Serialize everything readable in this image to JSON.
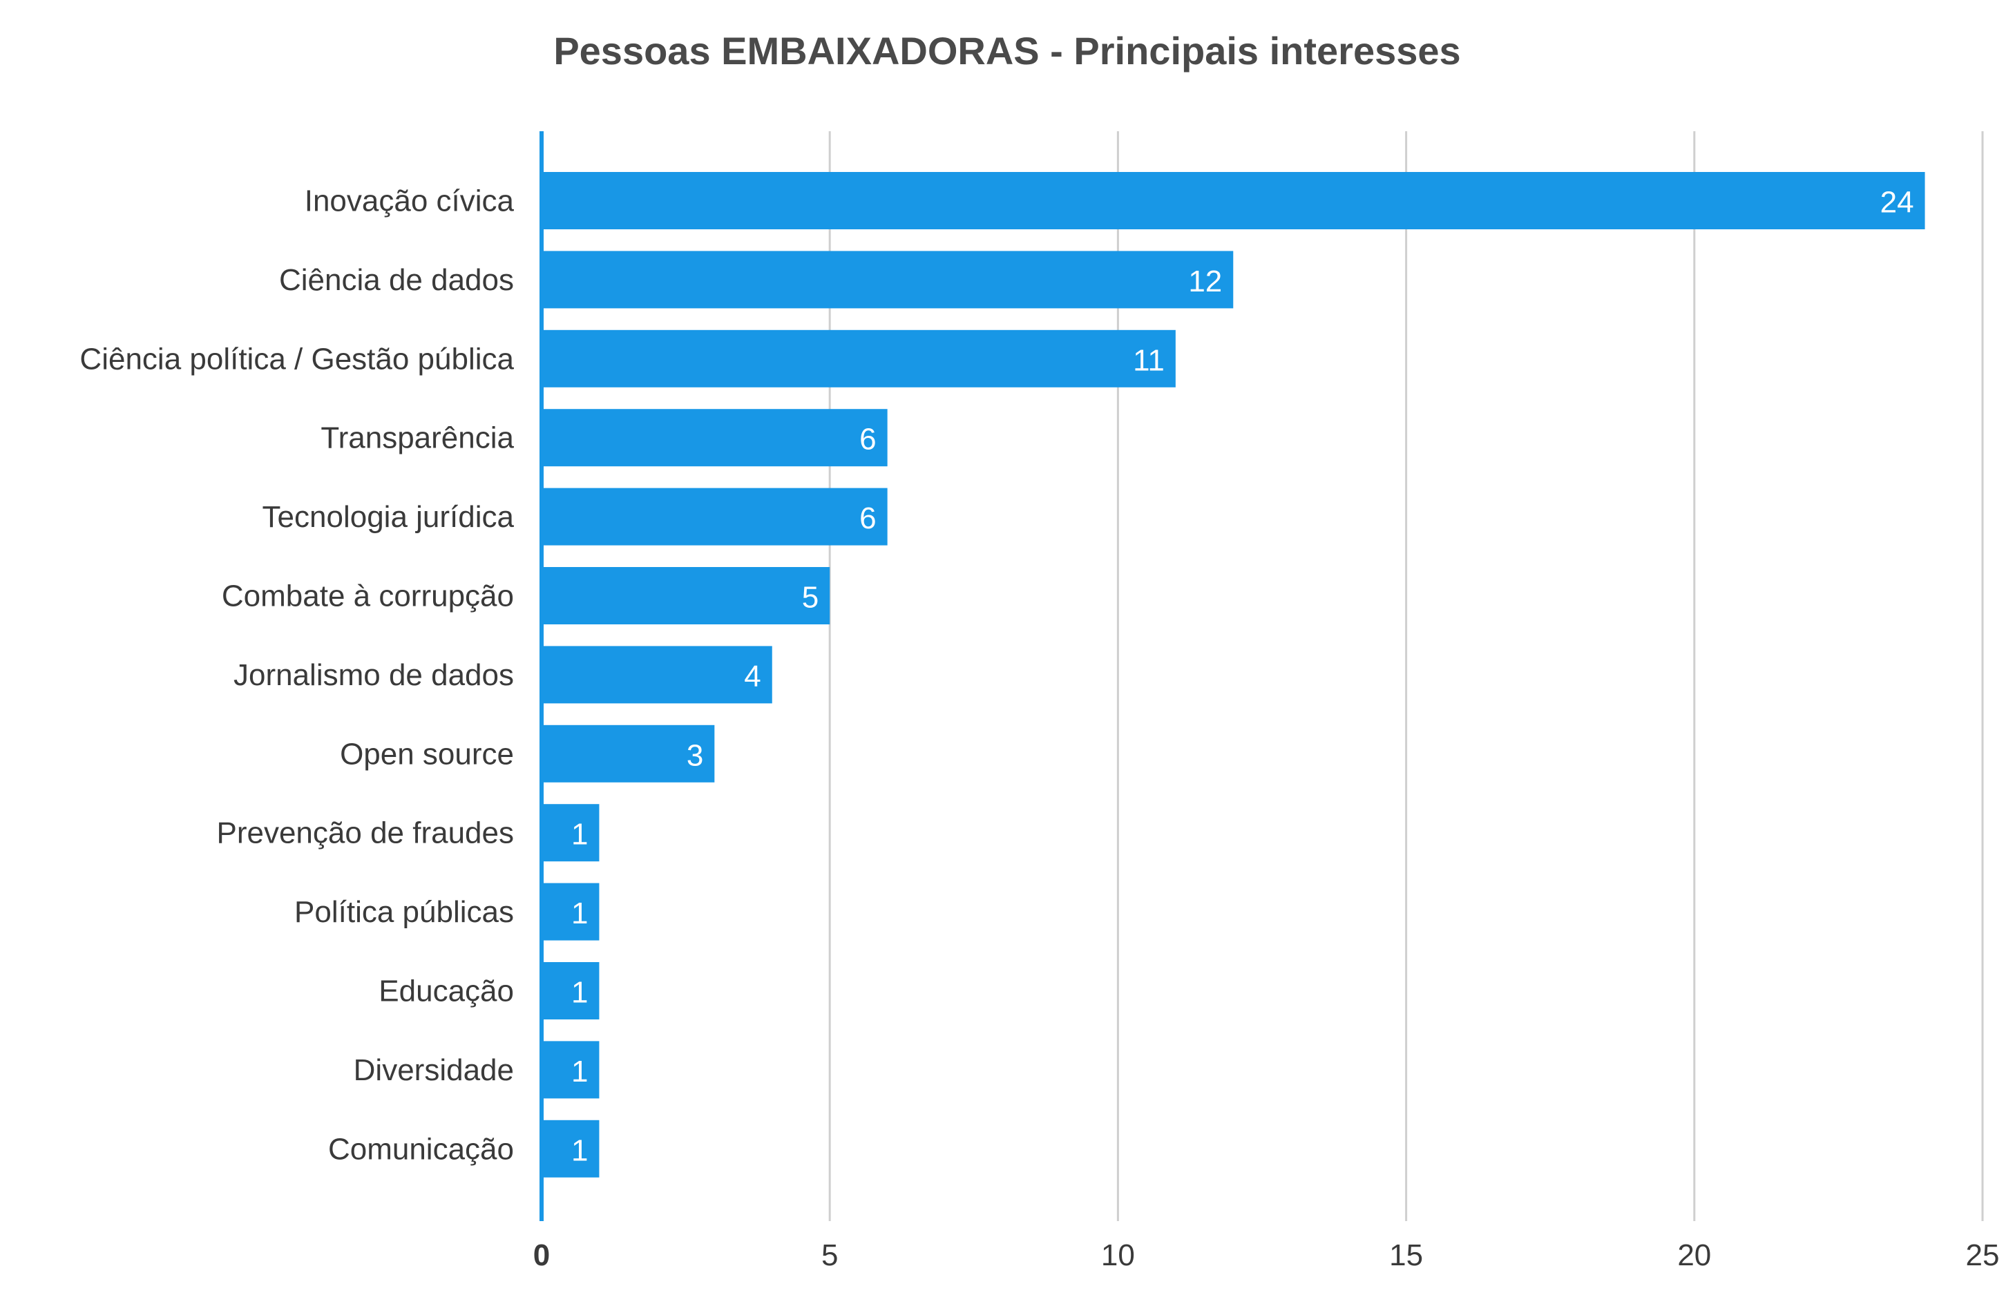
{
  "chart_data": {
    "type": "bar",
    "orientation": "horizontal",
    "title": "Pessoas EMBAIXADORAS - Principais interesses",
    "categories": [
      "Inovação cívica",
      "Ciência de dados",
      "Ciência política / Gestão pública",
      "Transparência",
      "Tecnologia jurídica",
      "Combate à corrupção",
      "Jornalismo de dados",
      "Open source",
      "Prevenção de fraudes",
      "Política públicas",
      "Educação",
      "Diversidade",
      "Comunicação"
    ],
    "values": [
      24,
      12,
      11,
      6,
      6,
      5,
      4,
      3,
      1,
      1,
      1,
      1,
      1
    ],
    "xlim": [
      0,
      25
    ],
    "xticks": [
      "0",
      "5",
      "10",
      "15",
      "20",
      "25"
    ],
    "grid": true,
    "data_labels": true,
    "colors": {
      "bar": "#1897e6",
      "axis": "#1897e6",
      "grid": "#cfcfcf"
    }
  }
}
